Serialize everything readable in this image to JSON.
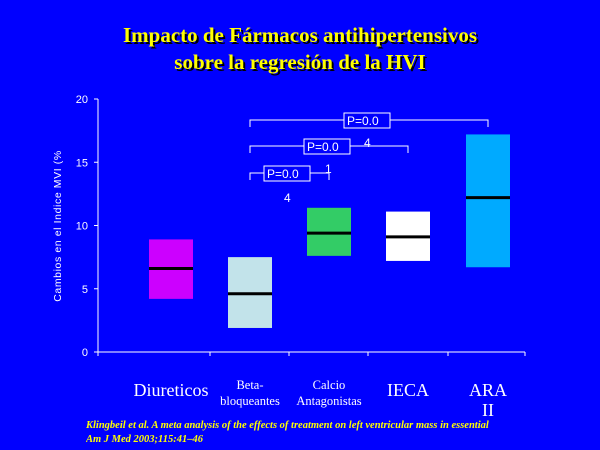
{
  "title": {
    "line1": "Impacto de Fármacos antihipertensivos",
    "line2": "sobre la regresión de la HVI"
  },
  "chart_data": {
    "type": "box",
    "ylabel": "Cambios en el Indice MVI (%",
    "ylim": [
      0,
      20
    ],
    "yticks": [
      "0",
      "5",
      "10",
      "15",
      "20"
    ],
    "legend": "none",
    "grid": false,
    "categories": [
      {
        "label_lines": [
          "Diureticos"
        ],
        "large": true
      },
      {
        "label_lines": [
          "Beta-",
          "bloqueantes"
        ],
        "large": false
      },
      {
        "label_lines": [
          "Calcio",
          "Antagonistas"
        ],
        "large": false
      },
      {
        "label_lines": [
          "IECA"
        ],
        "large": true
      },
      {
        "label_lines": [
          "ARA",
          "II"
        ],
        "large": true
      }
    ],
    "boxes": [
      {
        "low": 4.2,
        "high": 8.9,
        "median": 6.6,
        "color": "#cc00ff"
      },
      {
        "low": 1.9,
        "high": 7.5,
        "median": 4.6,
        "color": "#c2e3ea"
      },
      {
        "low": 7.6,
        "high": 11.4,
        "median": 9.4,
        "color": "#33cc66"
      },
      {
        "low": 7.2,
        "high": 11.1,
        "median": 9.1,
        "color": "#ffffff"
      },
      {
        "low": 6.7,
        "high": 17.2,
        "median": 12.2,
        "color": "#00aaff"
      }
    ],
    "comparisons": [
      {
        "from": 1,
        "to": 4,
        "text": "P=0.0",
        "wrap": "4"
      },
      {
        "from": 1,
        "to": 3,
        "text": "P=0.0",
        "wrap": "1"
      },
      {
        "from": 1,
        "to": 2,
        "text": "P=0.0",
        "wrap": "4"
      }
    ]
  },
  "citation": {
    "line1": "Klingbeil et al. A meta analysis of the effects of treatment on left ventricular mass in essential",
    "journal": "Am J Med",
    "ref": " 2003;115:41–46"
  }
}
